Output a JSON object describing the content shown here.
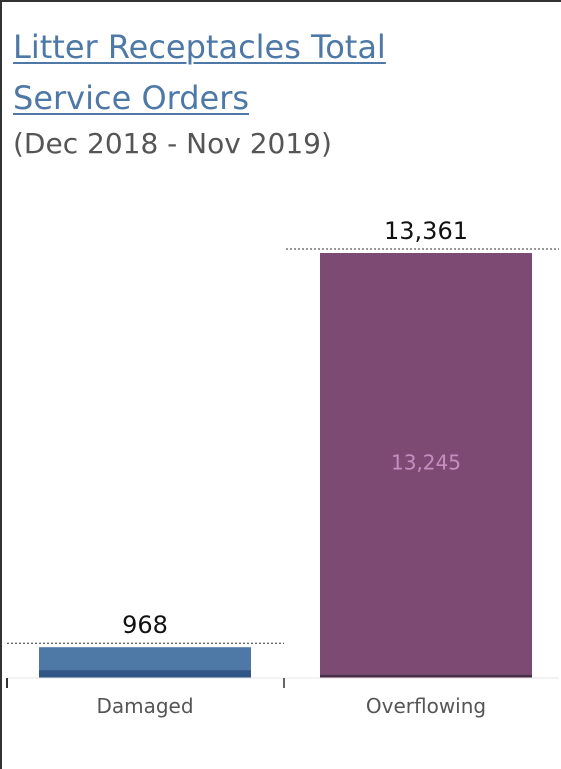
{
  "title": "Litter Receptacles Total Service Orders",
  "subtitle": "(Dec 2018 - Nov 2019)",
  "chart_data": {
    "type": "bar",
    "categories": [
      "Damaged",
      "Overflowing"
    ],
    "totals": [
      968,
      13361
    ],
    "total_labels": [
      "968",
      "13,361"
    ],
    "segments": [
      {
        "category": "Damaged",
        "values": [
          250,
          718
        ],
        "colors": [
          "#2f5685",
          "#4e79a7"
        ]
      },
      {
        "category": "Overflowing",
        "values": [
          116,
          13245
        ],
        "colors": [
          "#4a2e49",
          "#7d4a73"
        ]
      }
    ],
    "inner_labels": [
      {
        "category": "Overflowing",
        "text": "13,245",
        "color": "#c68ec0"
      }
    ],
    "reference_lines": "dashed line at each total",
    "ylim": [
      0,
      13361
    ],
    "xlabel": "",
    "ylabel": "",
    "grid": false,
    "legend": "none"
  }
}
